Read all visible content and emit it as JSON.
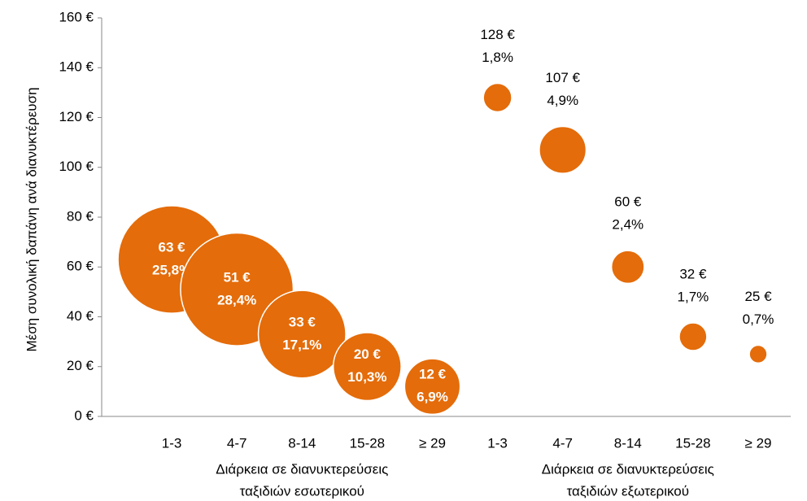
{
  "chart_data": {
    "type": "bubble",
    "y_label": "Μέση συνολική δαπάνη ανά διανυκτέρευση",
    "categories": [
      "1-3",
      "4-7",
      "8-14",
      "15-28",
      "≥ 29",
      "1-3",
      "4-7",
      "8-14",
      "15-28",
      "≥ 29"
    ],
    "x_groups": [
      [
        "Διάρκεια σε διανυκτερεύσεις",
        "ταξιδιών εσωτερικού"
      ],
      [
        "Διάρκεια σε διανυκτερεύσεις",
        "ταξιδιών εξωτερικού"
      ]
    ],
    "values": [
      63,
      51,
      33,
      20,
      12,
      128,
      107,
      60,
      32,
      25
    ],
    "value_labels": [
      "63 €",
      "51 €",
      "33 €",
      "20 €",
      "12 €",
      "128 €",
      "107 €",
      "60 €",
      "32 €",
      "25 €"
    ],
    "sizes": [
      25.8,
      28.4,
      17.1,
      10.3,
      6.9,
      1.8,
      4.9,
      2.4,
      1.7,
      0.7
    ],
    "size_labels": [
      "25,8%",
      "28,4%",
      "17,1%",
      "10,3%",
      "6,9%",
      "1,8%",
      "4,9%",
      "2,4%",
      "1,7%",
      "0,7%"
    ],
    "color": "#e46c0a",
    "ylim": [
      0,
      160
    ],
    "yticks": [
      {
        "value": 0,
        "label": "0 €"
      },
      {
        "value": 20,
        "label": "20 €"
      },
      {
        "value": 40,
        "label": "40 €"
      },
      {
        "value": 60,
        "label": "60 €"
      },
      {
        "value": 80,
        "label": "80 €"
      },
      {
        "value": 100,
        "label": "100 €"
      },
      {
        "value": 120,
        "label": "120 €"
      },
      {
        "value": 140,
        "label": "140 €"
      },
      {
        "value": 160,
        "label": "160 €"
      }
    ]
  }
}
